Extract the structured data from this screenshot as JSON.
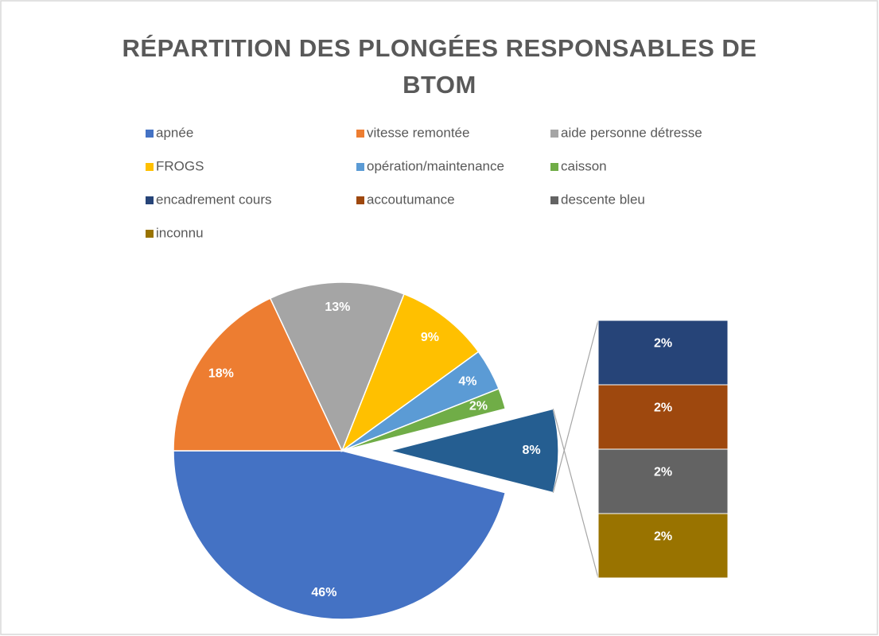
{
  "chart_data": {
    "type": "bar-of-pie",
    "title": "RÉPARTITION DES PLONGÉES RESPONSABLES DE BTOM",
    "categories": [
      "apnée",
      "vitesse remontée",
      "aide personne détresse",
      "FROGS",
      "opération/maintenance",
      "caisson",
      "encadrement cours",
      "accoutumance",
      "descente bleu",
      "inconnu"
    ],
    "values": [
      46,
      18,
      13,
      9,
      4,
      2,
      2,
      2,
      2,
      2
    ],
    "value_labels": [
      "46%",
      "18%",
      "13%",
      "9%",
      "4%",
      "2%",
      "2%",
      "2%",
      "2%",
      "2%"
    ],
    "colors": [
      "#4472c4",
      "#ed7d31",
      "#a5a5a5",
      "#ffc000",
      "#5b9bd5",
      "#70ad47",
      "#264478",
      "#9e480e",
      "#636363",
      "#997300"
    ],
    "second_plot_count": 4,
    "other_value": 8,
    "other_label": "8%",
    "other_color": "#255e91",
    "legend": "top"
  }
}
